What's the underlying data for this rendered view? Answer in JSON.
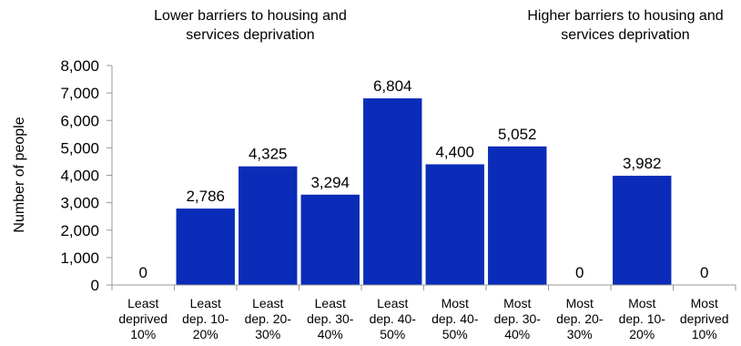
{
  "chart_data": {
    "type": "bar",
    "categories": [
      [
        "Least",
        "deprived",
        "10%"
      ],
      [
        "Least",
        "dep. 10-",
        "20%"
      ],
      [
        "Least",
        "dep. 20-",
        "30%"
      ],
      [
        "Least",
        "dep. 30-",
        "40%"
      ],
      [
        "Least",
        "dep. 40-",
        "50%"
      ],
      [
        "Most",
        "dep. 40-",
        "50%"
      ],
      [
        "Most",
        "dep. 30-",
        "40%"
      ],
      [
        "Most",
        "dep. 20-",
        "30%"
      ],
      [
        "Most",
        "dep. 10-",
        "20%"
      ],
      [
        "Most",
        "deprived",
        "10%"
      ]
    ],
    "values": [
      0,
      2786,
      4325,
      3294,
      6804,
      4400,
      5052,
      0,
      3982,
      0
    ],
    "data_labels": [
      "0",
      "2,786",
      "4,325",
      "3,294",
      "6,804",
      "4,400",
      "5,052",
      "0",
      "3,982",
      "0"
    ],
    "ylabel": "Number of people",
    "ylim": [
      0,
      8000
    ],
    "yticks": [
      0,
      1000,
      2000,
      3000,
      4000,
      5000,
      6000,
      7000,
      8000
    ],
    "ytick_labels": [
      "0",
      "1,000",
      "2,000",
      "3,000",
      "4,000",
      "5,000",
      "6,000",
      "7,000",
      "8,000"
    ],
    "bar_color": "#0A2CB8",
    "grid": false,
    "annotations": [
      {
        "lines": [
          "Lower barriers to housing and",
          "services deprivation"
        ],
        "side": "left"
      },
      {
        "lines": [
          "Higher barriers to housing and",
          "services deprivation"
        ],
        "side": "right"
      }
    ]
  }
}
